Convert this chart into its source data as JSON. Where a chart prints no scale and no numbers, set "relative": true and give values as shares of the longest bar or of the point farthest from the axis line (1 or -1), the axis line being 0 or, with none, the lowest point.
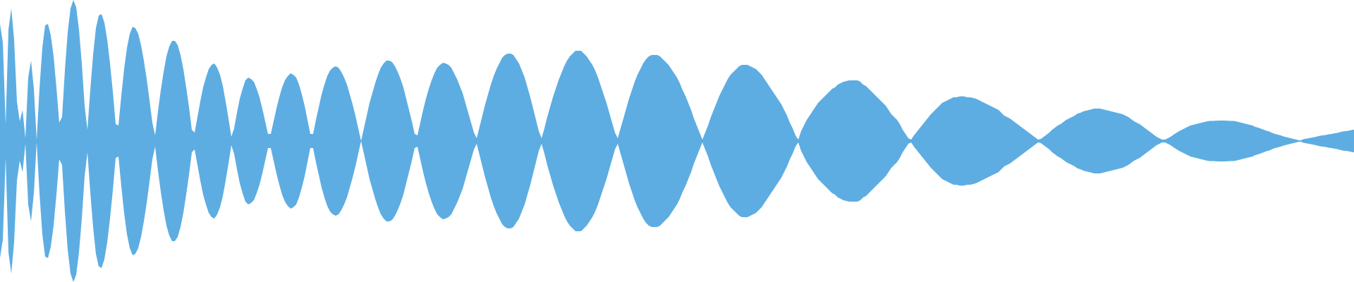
{
  "chart_data": {
    "type": "area",
    "relative": true,
    "ref_lines": [
      {
        "axis": "y",
        "value": 0,
        "color": "#5dade2"
      }
    ],
    "categories": [
      null,
      null,
      null,
      null,
      null,
      null,
      null,
      null,
      null,
      null,
      null,
      null,
      null,
      null,
      null,
      null,
      null,
      null,
      null,
      null,
      null,
      null,
      null,
      null,
      null,
      null,
      null,
      null,
      null,
      null,
      null,
      null,
      null,
      null,
      null,
      null,
      null,
      null,
      null,
      null,
      null,
      null,
      null,
      null,
      null,
      null,
      null,
      null,
      null,
      null,
      null,
      null,
      null,
      null,
      null,
      null,
      null,
      null,
      null,
      null,
      null,
      null,
      null,
      null,
      null,
      null,
      null,
      null,
      null,
      null,
      null,
      null,
      null,
      null,
      null,
      null,
      null,
      null,
      null,
      null,
      null,
      null,
      null,
      null,
      null,
      null,
      null,
      null,
      null,
      null,
      null,
      null,
      null,
      null,
      null,
      null,
      null,
      null,
      null,
      null,
      null,
      null,
      null,
      null,
      null,
      null,
      null,
      null,
      null,
      null,
      null,
      null,
      null,
      null,
      null,
      null,
      null,
      null,
      null,
      null,
      null,
      null,
      null,
      null,
      null,
      null,
      null,
      null,
      null,
      null,
      null,
      null,
      null,
      null,
      null,
      null,
      null,
      null,
      null,
      null,
      null,
      null,
      null,
      null,
      null,
      null,
      null,
      null,
      null,
      null,
      null,
      null,
      null,
      null,
      null,
      null,
      null,
      null,
      null,
      null,
      null,
      null,
      null,
      null,
      null,
      null,
      null,
      null,
      null,
      null,
      null,
      null,
      null,
      null,
      null,
      null,
      null,
      null,
      null,
      null,
      null,
      null,
      null,
      null,
      null,
      null,
      null,
      null,
      null,
      null,
      null,
      null,
      null,
      null,
      null,
      null,
      null,
      null,
      null,
      null,
      null,
      null,
      null,
      null,
      null,
      null,
      null,
      null,
      null,
      null,
      null,
      null,
      null,
      null,
      null,
      null,
      null,
      null,
      null,
      null,
      null,
      null,
      null,
      null,
      null,
      null,
      null,
      null,
      null,
      null,
      null,
      null,
      null,
      null,
      null,
      null,
      null,
      null,
      null,
      null,
      null,
      null,
      null,
      null,
      null,
      null,
      null,
      null,
      null,
      null,
      null,
      null,
      null,
      null,
      null,
      null,
      null,
      null,
      null,
      null,
      null,
      null,
      null,
      null,
      null,
      null,
      null,
      null,
      null,
      null,
      null,
      null,
      null,
      null,
      null,
      null,
      null,
      null,
      null,
      null,
      null,
      null,
      null,
      null,
      null,
      null,
      null,
      null,
      null,
      null,
      null,
      null,
      null,
      null,
      null,
      null,
      null,
      null,
      null,
      null,
      null,
      null,
      null,
      null,
      null,
      null,
      null,
      null,
      null,
      null,
      null,
      null,
      null,
      null,
      null,
      null,
      null,
      null,
      null,
      null,
      null,
      null,
      null,
      null,
      null,
      null,
      null,
      null,
      null,
      null,
      null,
      null,
      null,
      null,
      null,
      null,
      null,
      null,
      null,
      null,
      null,
      null,
      null,
      null,
      null,
      null,
      null,
      null,
      null,
      null,
      null,
      null,
      null,
      null,
      null,
      null,
      null,
      null,
      null,
      null,
      null,
      null,
      null,
      null,
      null,
      null,
      null,
      null,
      null,
      null,
      null,
      null,
      null,
      null,
      null,
      null,
      null,
      null,
      null,
      null,
      null,
      null,
      null,
      null,
      null,
      null,
      null,
      null,
      null,
      null,
      null,
      null,
      null,
      null,
      null,
      null,
      null,
      null,
      null,
      null,
      null,
      null,
      null,
      null,
      null,
      null,
      null,
      null,
      null,
      null,
      null,
      null,
      null,
      null,
      null,
      null,
      null,
      null,
      null,
      null,
      null,
      null,
      null,
      null,
      null,
      null,
      null,
      null,
      null,
      null,
      null,
      null,
      null,
      null,
      null,
      null,
      null,
      null,
      null,
      null,
      null,
      null,
      null,
      null,
      null,
      null,
      null,
      null,
      null,
      null,
      null,
      null,
      null,
      null,
      null,
      null,
      null,
      null,
      null,
      null,
      null,
      null,
      null,
      null,
      null,
      null,
      null,
      null,
      null,
      null,
      null,
      null,
      null,
      null,
      null,
      null,
      null,
      null,
      null,
      null,
      null
    ],
    "series": [
      {
        "color": "#5dade2",
        "values": [
          0.83,
          0.7,
          0.12,
          0.79,
          0.94,
          0.72,
          0.28,
          0.14,
          0.22,
          0.02,
          0.45,
          0.57,
          0.37,
          0.01,
          0.37,
          0.66,
          0.82,
          0.83,
          0.75,
          0.6,
          0.38,
          0.13,
          0.17,
          0.5,
          0.77,
          0.94,
          1,
          0.95,
          0.79,
          0.55,
          0.25,
          0.08,
          0.36,
          0.61,
          0.8,
          0.89,
          0.9,
          0.84,
          0.72,
          0.55,
          0.35,
          0.12,
          0.11,
          0.32,
          0.51,
          0.66,
          0.76,
          0.81,
          0.8,
          0.76,
          0.68,
          0.57,
          0.44,
          0.29,
          0.13,
          0.04,
          0.21,
          0.36,
          0.49,
          0.6,
          0.67,
          0.71,
          0.71,
          0.68,
          0.61,
          0.51,
          0.38,
          0.24,
          0.08,
          0.06,
          0.17,
          0.28,
          0.38,
          0.45,
          0.51,
          0.54,
          0.55,
          0.52,
          0.47,
          0.39,
          0.28,
          0.16,
          0.03,
          0.09,
          0.2,
          0.3,
          0.37,
          0.43,
          0.45,
          0.44,
          0.42,
          0.37,
          0.31,
          0.23,
          0.14,
          0.05,
          0.05,
          0.14,
          0.23,
          0.31,
          0.38,
          0.43,
          0.46,
          0.48,
          0.47,
          0.45,
          0.4,
          0.33,
          0.25,
          0.15,
          0.05,
          0.05,
          0.15,
          0.24,
          0.33,
          0.4,
          0.46,
          0.5,
          0.52,
          0.53,
          0.52,
          0.49,
          0.45,
          0.4,
          0.33,
          0.26,
          0.18,
          0.09,
          0,
          0.09,
          0.18,
          0.27,
          0.34,
          0.41,
          0.47,
          0.52,
          0.55,
          0.57,
          0.57,
          0.56,
          0.53,
          0.49,
          0.44,
          0.38,
          0.3,
          0.22,
          0.14,
          0.05,
          0.04,
          0.13,
          0.22,
          0.3,
          0.37,
          0.43,
          0.48,
          0.52,
          0.54,
          0.555,
          0.55,
          0.54,
          0.52,
          0.48,
          0.44,
          0.39,
          0.34,
          0.27,
          0.2,
          0.13,
          0.06,
          0.02,
          0.1,
          0.18,
          0.26,
          0.33,
          0.4,
          0.46,
          0.51,
          0.55,
          0.59,
          0.61,
          0.62,
          0.62,
          0.61,
          0.58,
          0.55,
          0.5,
          0.45,
          0.38,
          0.31,
          0.23,
          0.15,
          0.07,
          0.02,
          0.09,
          0.17,
          0.24,
          0.31,
          0.37,
          0.43,
          0.48,
          0.53,
          0.57,
          0.6,
          0.62,
          0.64,
          0.64,
          0.64,
          0.62,
          0.6,
          0.57,
          0.54,
          0.5,
          0.45,
          0.39,
          0.33,
          0.27,
          0.2,
          0.13,
          0.06,
          0.02,
          0.09,
          0.16,
          0.23,
          0.3,
          0.36,
          0.42,
          0.47,
          0.51,
          0.55,
          0.58,
          0.6,
          0.61,
          0.61,
          0.61,
          0.6,
          0.58,
          0.56,
          0.54,
          0.51,
          0.48,
          0.45,
          0.41,
          0.36,
          0.32,
          0.27,
          0.22,
          0.16,
          0.11,
          0.06,
          0.01,
          0.06,
          0.11,
          0.17,
          0.22,
          0.27,
          0.32,
          0.36,
          0.4,
          0.44,
          0.47,
          0.49,
          0.51,
          0.53,
          0.54,
          0.54,
          0.54,
          0.53,
          0.52,
          0.51,
          0.49,
          0.47,
          0.44,
          0.41,
          0.38,
          0.35,
          0.32,
          0.29,
          0.26,
          0.22,
          0.18,
          0.13,
          0.09,
          0.04,
          0.01,
          0.07,
          0.11,
          0.15,
          0.18,
          0.21,
          0.24,
          0.27,
          0.29,
          0.31,
          0.33,
          0.35,
          0.37,
          0.38,
          0.4,
          0.41,
          0.42,
          0.425,
          0.43,
          0.43,
          0.43,
          0.43,
          0.42,
          0.4,
          0.39,
          0.37,
          0.35,
          0.33,
          0.31,
          0.29,
          0.27,
          0.25,
          0.22,
          0.19,
          0.17,
          0.15,
          0.12,
          0.08,
          0.05,
          0.02,
          0.01,
          0.04,
          0.065,
          0.09,
          0.115,
          0.14,
          0.165,
          0.19,
          0.21,
          0.23,
          0.25,
          0.27,
          0.28,
          0.29,
          0.3,
          0.31,
          0.31,
          0.315,
          0.317,
          0.315,
          0.31,
          0.31,
          0.305,
          0.3,
          0.29,
          0.28,
          0.27,
          0.26,
          0.25,
          0.24,
          0.23,
          0.22,
          0.2,
          0.18,
          0.17,
          0.16,
          0.145,
          0.13,
          0.115,
          0.1,
          0.085,
          0.07,
          0.055,
          0.04,
          0.025,
          0.01,
          0.015,
          0.03,
          0.045,
          0.06,
          0.08,
          0.095,
          0.11,
          0.12,
          0.135,
          0.15,
          0.16,
          0.17,
          0.18,
          0.195,
          0.2,
          0.21,
          0.215,
          0.22,
          0.225,
          0.23,
          0.23,
          0.23,
          0.225,
          0.22,
          0.215,
          0.21,
          0.205,
          0.2,
          0.195,
          0.19,
          0.18,
          0.17,
          0.155,
          0.14,
          0.13,
          0.12,
          0.105,
          0.09,
          0.075,
          0.06,
          0.045,
          0.03,
          0.02,
          0.01,
          0.01,
          0.02,
          0.03,
          0.045,
          0.058,
          0.07,
          0.08,
          0.09,
          0.1,
          0.11,
          0.115,
          0.12,
          0.125,
          0.13,
          0.135,
          0.14,
          0.142,
          0.143,
          0.144,
          0.145,
          0.145,
          0.145,
          0.144,
          0.143,
          0.142,
          0.14,
          0.135,
          0.13,
          0.125,
          0.12,
          0.115,
          0.11,
          0.1,
          0.095,
          0.088,
          0.08,
          0.073,
          0.067,
          0.058,
          0.05,
          0.045,
          0.04,
          0.033,
          0.027,
          0.022,
          0.017,
          0.012,
          0.007,
          0.003,
          0.012,
          0.016,
          0.02,
          0.024,
          0.027,
          0.032,
          0.037,
          0.04,
          0.043,
          0.047,
          0.05,
          0.054,
          0.058,
          0.062,
          0.067,
          0.07,
          0.073,
          0.077,
          0.08
        ]
      },
      {
        "color": "#5dade2",
        "values": [
          -0.83,
          -0.7,
          -0.12,
          -0.79,
          -0.94,
          -0.72,
          -0.28,
          -0.14,
          -0.22,
          -0.02,
          -0.45,
          -0.57,
          -0.37,
          -0.01,
          -0.37,
          -0.66,
          -0.82,
          -0.83,
          -0.75,
          -0.6,
          -0.38,
          -0.13,
          -0.17,
          -0.5,
          -0.77,
          -0.94,
          -1,
          -0.95,
          -0.79,
          -0.55,
          -0.25,
          -0.08,
          -0.36,
          -0.61,
          -0.8,
          -0.89,
          -0.9,
          -0.84,
          -0.72,
          -0.55,
          -0.35,
          -0.12,
          -0.11,
          -0.32,
          -0.51,
          -0.66,
          -0.76,
          -0.81,
          -0.8,
          -0.76,
          -0.68,
          -0.57,
          -0.44,
          -0.29,
          -0.13,
          -0.04,
          -0.21,
          -0.36,
          -0.49,
          -0.6,
          -0.67,
          -0.71,
          -0.71,
          -0.68,
          -0.61,
          -0.51,
          -0.38,
          -0.24,
          -0.08,
          -0.06,
          -0.17,
          -0.28,
          -0.38,
          -0.45,
          -0.51,
          -0.54,
          -0.55,
          -0.52,
          -0.47,
          -0.39,
          -0.28,
          -0.16,
          -0.03,
          -0.09,
          -0.2,
          -0.3,
          -0.37,
          -0.43,
          -0.45,
          -0.44,
          -0.42,
          -0.37,
          -0.31,
          -0.23,
          -0.14,
          -0.05,
          -0.05,
          -0.14,
          -0.23,
          -0.31,
          -0.38,
          -0.43,
          -0.46,
          -0.48,
          -0.47,
          -0.45,
          -0.4,
          -0.33,
          -0.25,
          -0.15,
          -0.05,
          -0.05,
          -0.15,
          -0.24,
          -0.33,
          -0.4,
          -0.46,
          -0.5,
          -0.52,
          -0.53,
          -0.52,
          -0.49,
          -0.45,
          -0.4,
          -0.33,
          -0.26,
          -0.18,
          -0.09,
          0,
          -0.09,
          -0.18,
          -0.27,
          -0.34,
          -0.41,
          -0.47,
          -0.52,
          -0.55,
          -0.57,
          -0.57,
          -0.56,
          -0.53,
          -0.49,
          -0.44,
          -0.38,
          -0.3,
          -0.22,
          -0.14,
          -0.05,
          -0.04,
          -0.13,
          -0.22,
          -0.3,
          -0.37,
          -0.43,
          -0.48,
          -0.52,
          -0.54,
          -0.555,
          -0.55,
          -0.54,
          -0.52,
          -0.48,
          -0.44,
          -0.39,
          -0.34,
          -0.27,
          -0.2,
          -0.13,
          -0.06,
          -0.02,
          -0.1,
          -0.18,
          -0.26,
          -0.33,
          -0.4,
          -0.46,
          -0.51,
          -0.55,
          -0.59,
          -0.61,
          -0.62,
          -0.62,
          -0.61,
          -0.58,
          -0.55,
          -0.5,
          -0.45,
          -0.38,
          -0.31,
          -0.23,
          -0.15,
          -0.07,
          -0.02,
          -0.09,
          -0.17,
          -0.24,
          -0.31,
          -0.37,
          -0.43,
          -0.48,
          -0.53,
          -0.57,
          -0.6,
          -0.62,
          -0.64,
          -0.64,
          -0.64,
          -0.62,
          -0.6,
          -0.57,
          -0.54,
          -0.5,
          -0.45,
          -0.39,
          -0.33,
          -0.27,
          -0.2,
          -0.13,
          -0.06,
          -0.02,
          -0.09,
          -0.16,
          -0.23,
          -0.3,
          -0.36,
          -0.42,
          -0.47,
          -0.51,
          -0.55,
          -0.58,
          -0.6,
          -0.61,
          -0.61,
          -0.61,
          -0.6,
          -0.58,
          -0.56,
          -0.54,
          -0.51,
          -0.48,
          -0.45,
          -0.41,
          -0.36,
          -0.32,
          -0.27,
          -0.22,
          -0.16,
          -0.11,
          -0.06,
          -0.01,
          -0.06,
          -0.11,
          -0.17,
          -0.22,
          -0.27,
          -0.32,
          -0.36,
          -0.4,
          -0.44,
          -0.47,
          -0.49,
          -0.51,
          -0.53,
          -0.54,
          -0.54,
          -0.54,
          -0.53,
          -0.52,
          -0.51,
          -0.49,
          -0.47,
          -0.44,
          -0.41,
          -0.38,
          -0.35,
          -0.32,
          -0.29,
          -0.26,
          -0.22,
          -0.18,
          -0.13,
          -0.09,
          -0.04,
          -0.01,
          -0.07,
          -0.11,
          -0.15,
          -0.18,
          -0.21,
          -0.24,
          -0.27,
          -0.29,
          -0.31,
          -0.33,
          -0.35,
          -0.37,
          -0.38,
          -0.4,
          -0.41,
          -0.42,
          -0.425,
          -0.43,
          -0.43,
          -0.43,
          -0.43,
          -0.42,
          -0.4,
          -0.39,
          -0.37,
          -0.35,
          -0.33,
          -0.31,
          -0.29,
          -0.27,
          -0.25,
          -0.22,
          -0.19,
          -0.17,
          -0.15,
          -0.12,
          -0.08,
          -0.05,
          -0.02,
          -0.01,
          -0.04,
          -0.065,
          -0.09,
          -0.115,
          -0.14,
          -0.165,
          -0.19,
          -0.21,
          -0.23,
          -0.25,
          -0.27,
          -0.28,
          -0.29,
          -0.3,
          -0.31,
          -0.31,
          -0.315,
          -0.317,
          -0.315,
          -0.31,
          -0.31,
          -0.305,
          -0.3,
          -0.29,
          -0.28,
          -0.27,
          -0.26,
          -0.25,
          -0.24,
          -0.23,
          -0.22,
          -0.2,
          -0.18,
          -0.17,
          -0.16,
          -0.145,
          -0.13,
          -0.115,
          -0.1,
          -0.085,
          -0.07,
          -0.055,
          -0.04,
          -0.025,
          -0.01,
          -0.015,
          -0.03,
          -0.045,
          -0.06,
          -0.08,
          -0.095,
          -0.11,
          -0.12,
          -0.135,
          -0.15,
          -0.16,
          -0.17,
          -0.18,
          -0.195,
          -0.2,
          -0.21,
          -0.215,
          -0.22,
          -0.225,
          -0.23,
          -0.23,
          -0.23,
          -0.225,
          -0.22,
          -0.215,
          -0.21,
          -0.205,
          -0.2,
          -0.195,
          -0.19,
          -0.18,
          -0.17,
          -0.155,
          -0.14,
          -0.13,
          -0.12,
          -0.105,
          -0.09,
          -0.075,
          -0.06,
          -0.045,
          -0.03,
          -0.02,
          -0.01,
          -0.01,
          -0.02,
          -0.03,
          -0.045,
          -0.058,
          -0.07,
          -0.08,
          -0.09,
          -0.1,
          -0.11,
          -0.115,
          -0.12,
          -0.125,
          -0.13,
          -0.135,
          -0.14,
          -0.142,
          -0.143,
          -0.144,
          -0.145,
          -0.145,
          -0.145,
          -0.144,
          -0.143,
          -0.142,
          -0.14,
          -0.135,
          -0.13,
          -0.125,
          -0.12,
          -0.115,
          -0.11,
          -0.1,
          -0.095,
          -0.088,
          -0.08,
          -0.073,
          -0.067,
          -0.058,
          -0.05,
          -0.045,
          -0.04,
          -0.033,
          -0.027,
          -0.022,
          -0.017,
          -0.012,
          -0.007,
          -0.003,
          -0.012,
          -0.016,
          -0.02,
          -0.024,
          -0.027,
          -0.032,
          -0.037,
          -0.04,
          -0.043,
          -0.047,
          -0.05,
          -0.054,
          -0.058,
          -0.062,
          -0.067,
          -0.07,
          -0.073,
          -0.077,
          -0.08
        ]
      }
    ]
  }
}
